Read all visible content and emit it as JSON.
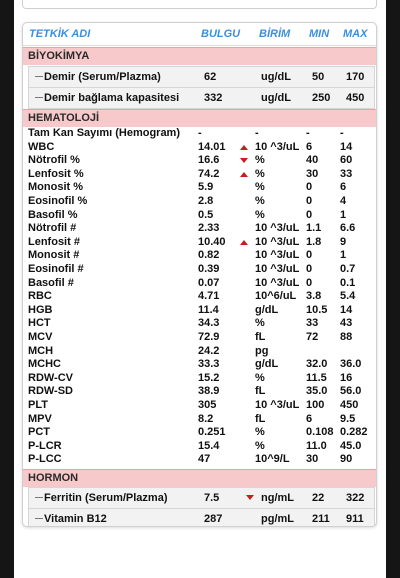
{
  "header": {
    "test": "TETKİK ADI",
    "result": "BULGU",
    "unit": "BİRİM",
    "min": "MIN",
    "max": "MAX"
  },
  "sections": [
    {
      "title": "BİYOKİMYA",
      "rows": [
        {
          "name": "Demir (Serum/Plazma)",
          "value": "62",
          "flag": "",
          "unit": "ug/dL",
          "min": "50",
          "max": "170"
        },
        {
          "name": "Demir bağlama kapasitesi",
          "value": "332",
          "flag": "",
          "unit": "ug/dL",
          "min": "250",
          "max": "450"
        }
      ]
    },
    {
      "title": "HEMATOLOJİ",
      "rows": [
        {
          "name": "Tam Kan Sayımı (Hemogram)",
          "value": "-",
          "flag": "",
          "unit": "-",
          "min": "-",
          "max": "-"
        },
        {
          "name": "WBC",
          "value": "14.01",
          "flag": "high",
          "unit": "10 ^3/uL",
          "min": "6",
          "max": "14"
        },
        {
          "name": "Nötrofil %",
          "value": "16.6",
          "flag": "low",
          "unit": "%",
          "min": "40",
          "max": "60"
        },
        {
          "name": "Lenfosit %",
          "value": "74.2",
          "flag": "high",
          "unit": "%",
          "min": "30",
          "max": "33"
        },
        {
          "name": "Monosit %",
          "value": "5.9",
          "flag": "",
          "unit": "%",
          "min": "0",
          "max": "6"
        },
        {
          "name": "Eosinofil %",
          "value": "2.8",
          "flag": "",
          "unit": "%",
          "min": "0",
          "max": "4"
        },
        {
          "name": "Basofil %",
          "value": "0.5",
          "flag": "",
          "unit": "%",
          "min": "0",
          "max": "1"
        },
        {
          "name": "Nötrofil #",
          "value": "2.33",
          "flag": "",
          "unit": "10 ^3/uL",
          "min": "1.1",
          "max": "6.6"
        },
        {
          "name": "Lenfosit #",
          "value": "10.40",
          "flag": "high",
          "unit": "10 ^3/uL",
          "min": "1.8",
          "max": "9"
        },
        {
          "name": "Monosit #",
          "value": "0.82",
          "flag": "",
          "unit": "10 ^3/uL",
          "min": "0",
          "max": "1"
        },
        {
          "name": "Eosinofil #",
          "value": "0.39",
          "flag": "",
          "unit": "10 ^3/uL",
          "min": "0",
          "max": "0.7"
        },
        {
          "name": "Basofil #",
          "value": "0.07",
          "flag": "",
          "unit": "10 ^3/uL",
          "min": "0",
          "max": "0.1"
        },
        {
          "name": "RBC",
          "value": "4.71",
          "flag": "",
          "unit": "10^6/uL",
          "min": "3.8",
          "max": "5.4"
        },
        {
          "name": "HGB",
          "value": "11.4",
          "flag": "",
          "unit": "g/dL",
          "min": "10.5",
          "max": "14"
        },
        {
          "name": "HCT",
          "value": "34.3",
          "flag": "",
          "unit": "%",
          "min": "33",
          "max": "43"
        },
        {
          "name": "MCV",
          "value": "72.9",
          "flag": "",
          "unit": "fL",
          "min": "72",
          "max": "88"
        },
        {
          "name": "MCH",
          "value": "24.2",
          "flag": "",
          "unit": "pg",
          "min": "",
          "max": ""
        },
        {
          "name": "MCHC",
          "value": "33.3",
          "flag": "",
          "unit": "g/dL",
          "min": "32.0",
          "max": "36.0"
        },
        {
          "name": "RDW-CV",
          "value": "15.2",
          "flag": "",
          "unit": "%",
          "min": "11.5",
          "max": "16"
        },
        {
          "name": "RDW-SD",
          "value": "38.9",
          "flag": "",
          "unit": "fL",
          "min": "35.0",
          "max": "56.0"
        },
        {
          "name": "PLT",
          "value": "305",
          "flag": "",
          "unit": "10 ^3/uL",
          "min": "100",
          "max": "450"
        },
        {
          "name": "MPV",
          "value": "8.2",
          "flag": "",
          "unit": "fL",
          "min": "6",
          "max": "9.5"
        },
        {
          "name": "PCT",
          "value": "0.251",
          "flag": "",
          "unit": "%",
          "min": "0.108",
          "max": "0.282"
        },
        {
          "name": "P-LCR",
          "value": "15.4",
          "flag": "",
          "unit": "%",
          "min": "11.0",
          "max": "45.0"
        },
        {
          "name": "P-LCC",
          "value": "47",
          "flag": "",
          "unit": "10^9/L",
          "min": "30",
          "max": "90"
        }
      ]
    },
    {
      "title": "HORMON",
      "rows": [
        {
          "name": "Ferritin (Serum/Plazma)",
          "value": "7.5",
          "flag": "low",
          "unit": "ng/mL",
          "min": "22",
          "max": "322"
        },
        {
          "name": "Vitamin B12",
          "value": "287",
          "flag": "",
          "unit": "pg/mL",
          "min": "211",
          "max": "911"
        }
      ]
    }
  ],
  "colors": {
    "header_text": "#3b8fe0",
    "section_bg": "#f8c9cb",
    "flag_arrow": "#c81d1d"
  }
}
